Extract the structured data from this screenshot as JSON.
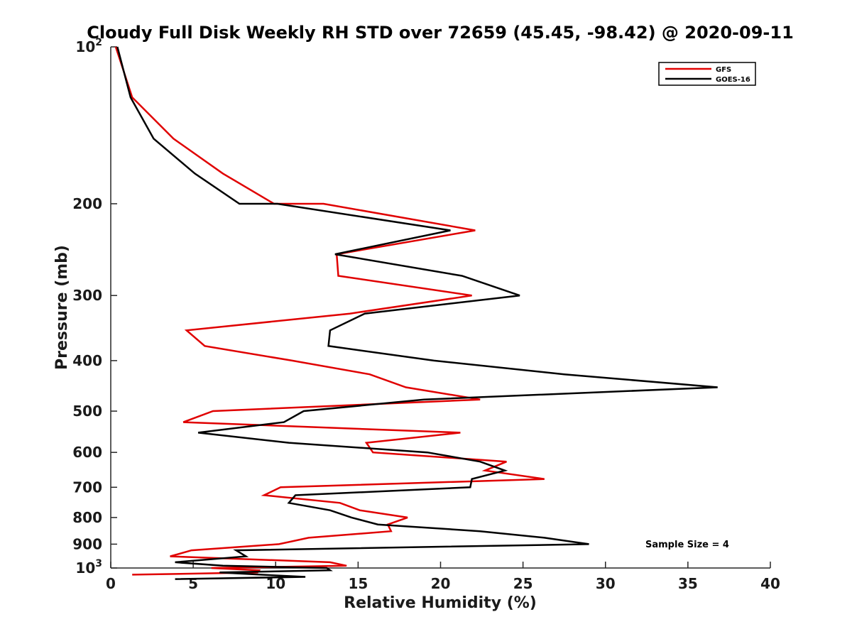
{
  "chart_data": {
    "type": "line",
    "title": "Cloudy Full Disk Weekly RH STD over 72659 (45.45, -98.42) @ 2020-09-11",
    "xlabel": "Relative Humidity (%)",
    "ylabel": "Pressure (mb)",
    "xlim": [
      0,
      40
    ],
    "ylim": [
      100,
      1000
    ],
    "y_scale": "log",
    "y_reversed": true,
    "x_ticks": [
      "0",
      "5",
      "10",
      "15",
      "20",
      "25",
      "30",
      "35",
      "40"
    ],
    "y_ticks": [
      {
        "value": 100,
        "base": "10",
        "exp": "2"
      },
      {
        "value": 200,
        "label": "200"
      },
      {
        "value": 300,
        "label": "300"
      },
      {
        "value": 400,
        "label": "400"
      },
      {
        "value": 500,
        "label": "500"
      },
      {
        "value": 600,
        "label": "600"
      },
      {
        "value": 700,
        "label": "700"
      },
      {
        "value": 800,
        "label": "800"
      },
      {
        "value": 900,
        "label": "900"
      },
      {
        "value": 1000,
        "base": "10",
        "exp": "3"
      }
    ],
    "legend_position": "top-right",
    "grid": false,
    "annotation": "Sample Size = 4",
    "series": [
      {
        "name": "GFS",
        "color": "#e00000",
        "points": [
          [
            0.3,
            100
          ],
          [
            1.3,
            125
          ],
          [
            3.8,
            150
          ],
          [
            6.8,
            175
          ],
          [
            9.9,
            200
          ],
          [
            12.9,
            200
          ],
          [
            22.1,
            225
          ],
          [
            13.7,
            250
          ],
          [
            13.8,
            275
          ],
          [
            21.9,
            300
          ],
          [
            14.5,
            325
          ],
          [
            4.6,
            350
          ],
          [
            5.7,
            375
          ],
          [
            11.0,
            400
          ],
          [
            15.7,
            425
          ],
          [
            17.9,
            450
          ],
          [
            22.4,
            475
          ],
          [
            6.2,
            500
          ],
          [
            4.4,
            525
          ],
          [
            21.2,
            550
          ],
          [
            15.5,
            575
          ],
          [
            15.9,
            600
          ],
          [
            24.0,
            625
          ],
          [
            22.7,
            650
          ],
          [
            26.3,
            675
          ],
          [
            10.3,
            700
          ],
          [
            9.3,
            725
          ],
          [
            13.9,
            750
          ],
          [
            15.1,
            775
          ],
          [
            18.0,
            800
          ],
          [
            16.8,
            825
          ],
          [
            17.0,
            850
          ],
          [
            12.0,
            875
          ],
          [
            10.2,
            900
          ],
          [
            4.9,
            925
          ],
          [
            3.6,
            950
          ],
          [
            13.3,
            975
          ],
          [
            14.3,
            990
          ],
          [
            6.1,
            1000
          ],
          [
            9.0,
            1010
          ],
          [
            8.9,
            1020
          ],
          [
            1.3,
            1030
          ]
        ]
      },
      {
        "name": "GOES-16",
        "color": "#000000",
        "points": [
          [
            0.4,
            100
          ],
          [
            1.2,
            125
          ],
          [
            2.6,
            150
          ],
          [
            5.1,
            175
          ],
          [
            7.8,
            200
          ],
          [
            10.1,
            200
          ],
          [
            20.6,
            225
          ],
          [
            13.6,
            250
          ],
          [
            21.3,
            275
          ],
          [
            24.8,
            300
          ],
          [
            15.4,
            325
          ],
          [
            13.3,
            350
          ],
          [
            13.2,
            375
          ],
          [
            19.6,
            400
          ],
          [
            27.5,
            425
          ],
          [
            36.8,
            450
          ],
          [
            19.0,
            475
          ],
          [
            11.7,
            500
          ],
          [
            10.5,
            525
          ],
          [
            5.3,
            550
          ],
          [
            10.8,
            575
          ],
          [
            19.2,
            600
          ],
          [
            22.4,
            625
          ],
          [
            23.9,
            650
          ],
          [
            21.9,
            675
          ],
          [
            21.8,
            700
          ],
          [
            11.2,
            725
          ],
          [
            10.8,
            750
          ],
          [
            13.3,
            775
          ],
          [
            14.6,
            800
          ],
          [
            16.2,
            825
          ],
          [
            22.4,
            850
          ],
          [
            26.3,
            875
          ],
          [
            29.0,
            900
          ],
          [
            7.6,
            925
          ],
          [
            8.2,
            950
          ],
          [
            3.9,
            975
          ],
          [
            6.8,
            990
          ],
          [
            13.1,
            1000
          ],
          [
            13.3,
            1010
          ],
          [
            6.6,
            1020
          ],
          [
            9.1,
            1030
          ],
          [
            11.8,
            1040
          ],
          [
            3.9,
            1050
          ]
        ]
      }
    ]
  }
}
